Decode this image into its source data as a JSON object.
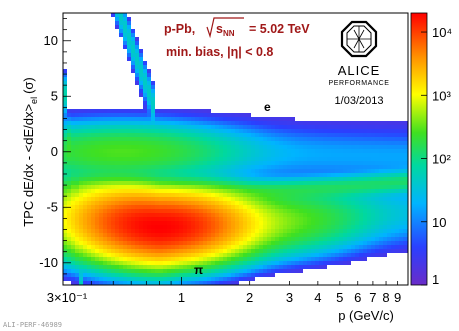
{
  "chart_data": {
    "type": "heatmap",
    "title": "",
    "xlabel": "p (GeV/c)",
    "ylabel": "TPC dE/dx - <dE/dx>",
    "ylabel_sub": "el",
    "ylabel_unit": "(σ)",
    "x_scale": "log",
    "xlim": [
      0.3,
      10
    ],
    "ylim": [
      -12,
      12.5
    ],
    "x_ticks": [
      {
        "value": 0.3,
        "label": "3×10⁻¹"
      },
      {
        "value": 1,
        "label": "1"
      },
      {
        "value": 2,
        "label": "2"
      },
      {
        "value": 3,
        "label": "3"
      },
      {
        "value": 4,
        "label": "4"
      },
      {
        "value": 5,
        "label": "5"
      },
      {
        "value": 6,
        "label": "6"
      },
      {
        "value": 7,
        "label": "7"
      },
      {
        "value": 8,
        "label": "8"
      },
      {
        "value": 9,
        "label": "9"
      }
    ],
    "y_ticks": [
      {
        "value": 10,
        "label": "10"
      },
      {
        "value": 5,
        "label": "5"
      },
      {
        "value": 0,
        "label": "0"
      },
      {
        "value": -5,
        "label": "-5"
      },
      {
        "value": -10,
        "label": "-10"
      }
    ],
    "colorbar": {
      "scale": "log",
      "range": [
        1,
        20000
      ],
      "ticks": [
        {
          "value": 10,
          "label": "10"
        },
        {
          "value": 100,
          "label": "10²"
        },
        {
          "value": 1000,
          "label": "10³"
        },
        {
          "value": 10000,
          "label": "10⁴"
        },
        {
          "value": 1,
          "label": "1"
        }
      ],
      "colors": [
        "#6a2cc8",
        "#2a40ff",
        "#00b4ff",
        "#00d8a0",
        "#40e020",
        "#ffff00",
        "#ff9000",
        "#ff0000"
      ]
    },
    "bands": [
      {
        "name": "e",
        "center": [
          [
            0.3,
            0
          ],
          [
            0.8,
            0
          ],
          [
            2,
            0
          ],
          [
            5,
            -0.3
          ],
          [
            10,
            -0.5
          ]
        ],
        "peak_count": 300
      },
      {
        "name": "π",
        "center": [
          [
            0.3,
            -6
          ],
          [
            0.8,
            -6.8
          ],
          [
            2,
            -6.5
          ],
          [
            5,
            -6
          ],
          [
            10,
            -5.5
          ]
        ],
        "peak_count": 20000
      }
    ],
    "annotations": {
      "collision": "p-Pb,",
      "sqrt_label": "s",
      "sqrt_sub": "NN",
      "energy": "= 5.02 TeV",
      "selection": "min. bias, |η| < 0.8",
      "label_e": "e",
      "label_pi": "π",
      "logo": "ALICE",
      "logo_sub": "PERFORMANCE",
      "date": "1/03/2013",
      "footer": "ALI-PERF-46989"
    }
  }
}
